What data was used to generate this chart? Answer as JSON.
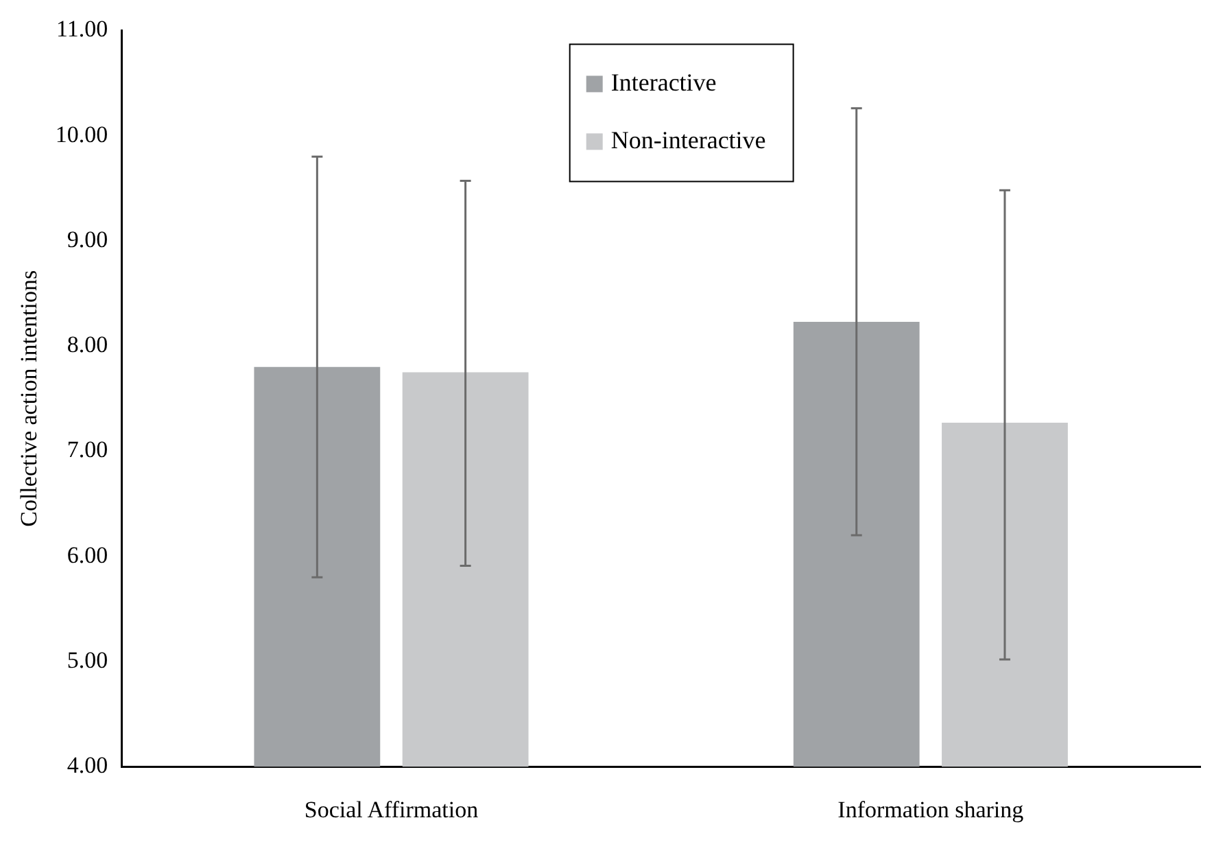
{
  "chart_data": {
    "type": "bar",
    "ylabel": "Collective action intentions",
    "categories": [
      "Social Affirmation",
      "Information sharing"
    ],
    "series": [
      {
        "name": "Interactive",
        "color": "#a0a3a6",
        "values": [
          7.8,
          8.23
        ],
        "errors": [
          2.0,
          2.03
        ]
      },
      {
        "name": "Non-interactive",
        "color": "#c8c9cb",
        "values": [
          7.75,
          7.27
        ],
        "errors": [
          [
            5.91,
            9.57
          ],
          [
            5.02,
            9.48
          ]
        ]
      }
    ],
    "ylim": [
      4,
      11
    ],
    "yticks": [
      {
        "value": 4,
        "label": "4.00"
      },
      {
        "value": 5,
        "label": "5.00"
      },
      {
        "value": 6,
        "label": "6.00"
      },
      {
        "value": 7,
        "label": "7.00"
      },
      {
        "value": 8,
        "label": "8.00"
      },
      {
        "value": 9,
        "label": "9.00"
      },
      {
        "value": 10,
        "label": "10.00"
      },
      {
        "value": 11,
        "label": "11.00"
      }
    ],
    "grid": false,
    "legend": "top"
  }
}
